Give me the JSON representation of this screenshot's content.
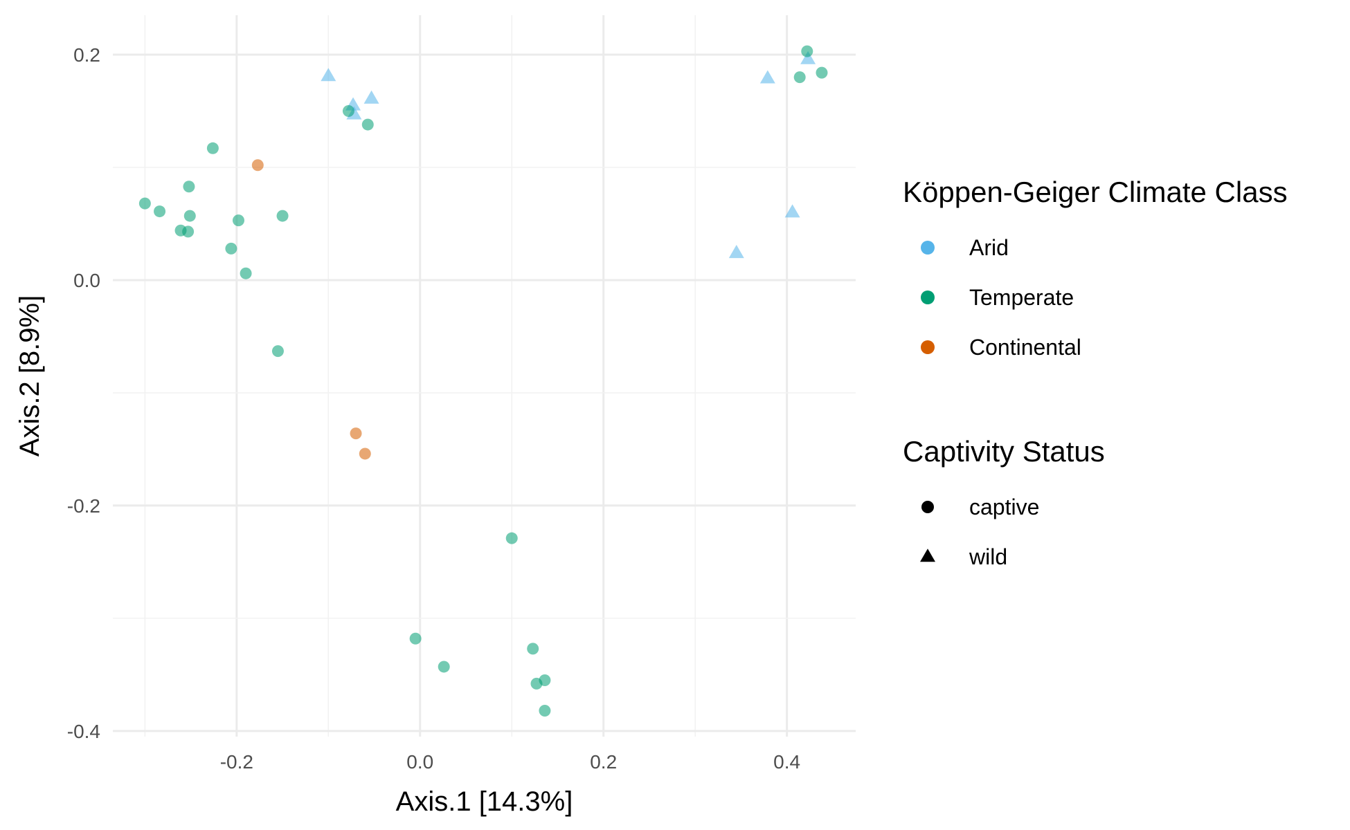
{
  "chart_data": {
    "type": "scatter",
    "title": "",
    "xlabel": "Axis.1   [14.3%]",
    "ylabel": "Axis.2   [8.9%]",
    "xlim": [
      -0.335,
      0.475
    ],
    "ylim": [
      -0.405,
      0.235
    ],
    "x_ticks": [
      -0.2,
      0.0,
      0.2,
      0.4
    ],
    "x_tick_labels": [
      "-0.2",
      "0.0",
      "0.2",
      "0.4"
    ],
    "y_ticks": [
      -0.4,
      -0.2,
      0.0,
      0.2
    ],
    "y_tick_labels": [
      "-0.4",
      "-0.2",
      "0.0",
      "0.2"
    ],
    "grid": true,
    "legend_position": "right",
    "color_legend": {
      "title": "Köppen-Geiger Climate Class",
      "items": [
        {
          "label": "Arid",
          "color": "#56B4E9"
        },
        {
          "label": "Temperate",
          "color": "#009E73"
        },
        {
          "label": "Continental",
          "color": "#D55E00"
        }
      ]
    },
    "shape_legend": {
      "title": "Captivity Status",
      "items": [
        {
          "label": "captive",
          "shape": "circle"
        },
        {
          "label": "wild",
          "shape": "triangle"
        }
      ]
    },
    "series": [
      {
        "climate": "Arid",
        "status": "wild",
        "points": [
          [
            -0.1,
            0.181
          ],
          [
            -0.073,
            0.155
          ],
          [
            -0.072,
            0.147
          ],
          [
            -0.053,
            0.161
          ],
          [
            0.379,
            0.179
          ],
          [
            0.423,
            0.196
          ],
          [
            0.406,
            0.06
          ],
          [
            0.345,
            0.024
          ]
        ]
      },
      {
        "climate": "Temperate",
        "status": "captive",
        "points": [
          [
            0.422,
            0.203
          ],
          [
            0.414,
            0.18
          ],
          [
            0.438,
            0.184
          ],
          [
            -0.078,
            0.15
          ],
          [
            -0.057,
            0.138
          ],
          [
            -0.226,
            0.117
          ],
          [
            -0.252,
            0.083
          ],
          [
            -0.3,
            0.068
          ],
          [
            -0.284,
            0.061
          ],
          [
            -0.251,
            0.057
          ],
          [
            -0.198,
            0.053
          ],
          [
            -0.15,
            0.057
          ],
          [
            -0.261,
            0.044
          ],
          [
            -0.253,
            0.043
          ],
          [
            -0.206,
            0.028
          ],
          [
            -0.19,
            0.006
          ],
          [
            -0.155,
            -0.063
          ],
          [
            0.1,
            -0.229
          ],
          [
            -0.005,
            -0.318
          ],
          [
            0.026,
            -0.343
          ],
          [
            0.123,
            -0.327
          ],
          [
            0.136,
            -0.355
          ],
          [
            0.127,
            -0.358
          ],
          [
            0.136,
            -0.382
          ]
        ]
      },
      {
        "climate": "Continental",
        "status": "captive",
        "points": [
          [
            -0.177,
            0.102
          ],
          [
            -0.07,
            -0.136
          ],
          [
            -0.06,
            -0.154
          ]
        ]
      }
    ]
  }
}
